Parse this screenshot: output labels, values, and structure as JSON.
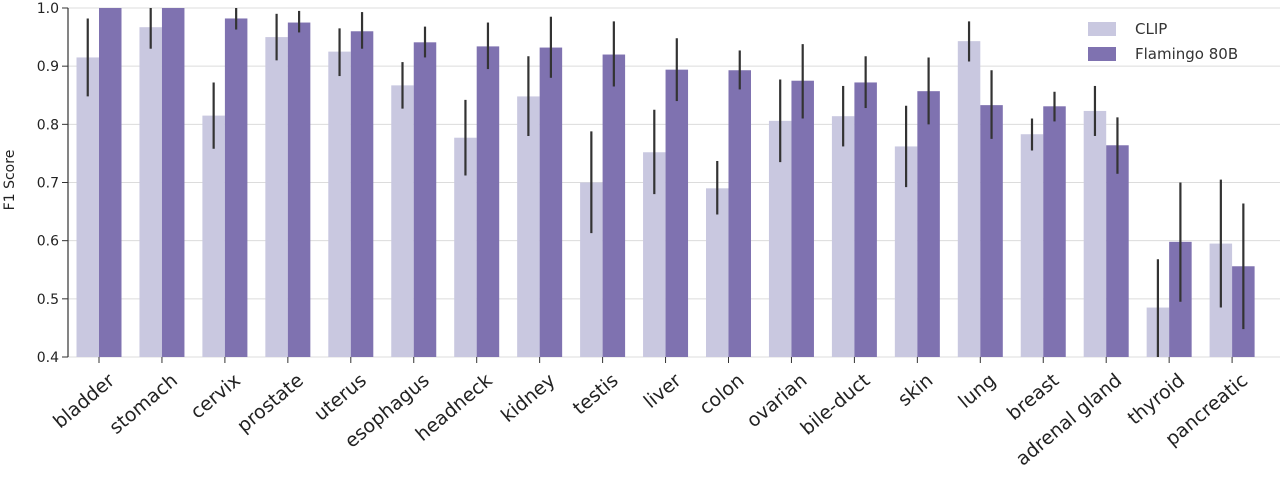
{
  "chart_data": {
    "type": "bar",
    "ylabel": "F1 Score",
    "xlabel": "",
    "ylim": [
      0.4,
      1.0
    ],
    "yticks": [
      "0.4",
      "0.5",
      "0.6",
      "0.7",
      "0.8",
      "0.9",
      "1.0"
    ],
    "grid": "horizontal",
    "legend_position": "top-right",
    "categories": [
      "bladder",
      "stomach",
      "cervix",
      "prostate",
      "uterus",
      "esophagus",
      "headneck",
      "kidney",
      "testis",
      "liver",
      "colon",
      "ovarian",
      "bile-duct",
      "skin",
      "lung",
      "breast",
      "adrenal gland",
      "thyroid",
      "pancreatic"
    ],
    "series": [
      {
        "name": "CLIP",
        "color": "#c9c8e0",
        "values": [
          0.915,
          0.967,
          0.815,
          0.95,
          0.925,
          0.867,
          0.777,
          0.848,
          0.7,
          0.752,
          0.69,
          0.806,
          0.814,
          0.762,
          0.943,
          0.783,
          0.823,
          0.485,
          0.595
        ],
        "error_low": [
          0.848,
          0.93,
          0.758,
          0.91,
          0.883,
          0.827,
          0.712,
          0.78,
          0.613,
          0.68,
          0.645,
          0.735,
          0.762,
          0.692,
          0.908,
          0.755,
          0.78,
          0.4,
          0.485
        ],
        "error_high": [
          0.982,
          1.0,
          0.872,
          0.99,
          0.965,
          0.907,
          0.842,
          0.917,
          0.788,
          0.825,
          0.737,
          0.877,
          0.866,
          0.832,
          0.977,
          0.81,
          0.866,
          0.568,
          0.705
        ]
      },
      {
        "name": "Flamingo 80B",
        "color": "#7f72b0",
        "values": [
          1.0,
          1.0,
          0.982,
          0.975,
          0.96,
          0.941,
          0.934,
          0.932,
          0.92,
          0.894,
          0.893,
          0.875,
          0.872,
          0.857,
          0.833,
          0.831,
          0.764,
          0.598,
          0.556
        ],
        "error_low": [
          1.0,
          1.0,
          0.963,
          0.958,
          0.93,
          0.915,
          0.895,
          0.88,
          0.865,
          0.84,
          0.86,
          0.81,
          0.828,
          0.8,
          0.775,
          0.805,
          0.715,
          0.495,
          0.448
        ],
        "error_high": [
          1.0,
          1.0,
          1.0,
          0.995,
          0.993,
          0.968,
          0.975,
          0.985,
          0.977,
          0.948,
          0.927,
          0.938,
          0.917,
          0.915,
          0.893,
          0.856,
          0.812,
          0.7,
          0.664
        ]
      }
    ]
  }
}
